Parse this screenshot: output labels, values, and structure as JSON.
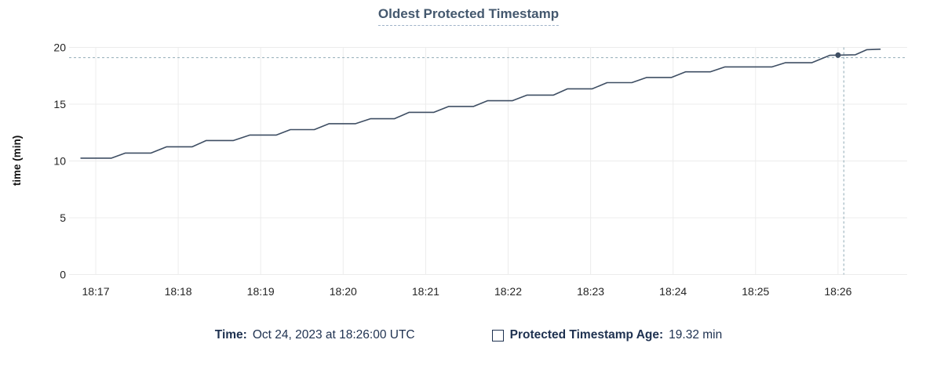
{
  "chart": {
    "tooltip": {
      "time_label": "Time:",
      "time_value": "Oct 24, 2023 at 18:26:00 UTC",
      "series_label": "Protected Timestamp Age:",
      "series_value": "19.32 min"
    }
  },
  "chart_data": {
    "type": "line",
    "title": "Oldest Protected Timestamp",
    "xlabel": "",
    "ylabel": "time (min)",
    "ylim": [
      0,
      20
    ],
    "yticks": [
      0,
      5,
      10,
      15,
      20
    ],
    "xtick_minutes_after_1800": [
      17,
      18,
      19,
      20,
      21,
      22,
      23,
      24,
      25,
      26
    ],
    "xtick_labels": [
      "18:17",
      "18:18",
      "18:19",
      "18:20",
      "18:21",
      "18:22",
      "18:23",
      "18:24",
      "18:25",
      "18:26"
    ],
    "grid": true,
    "legend_position": "bottom",
    "series": [
      {
        "name": "Protected Timestamp Age",
        "unit": "min",
        "points": [
          [
            16.82,
            10.25
          ],
          [
            17.19,
            10.25
          ],
          [
            17.36,
            10.7
          ],
          [
            17.67,
            10.7
          ],
          [
            17.86,
            11.25
          ],
          [
            18.17,
            11.25
          ],
          [
            18.34,
            11.8
          ],
          [
            18.67,
            11.8
          ],
          [
            18.87,
            12.28
          ],
          [
            19.19,
            12.28
          ],
          [
            19.36,
            12.76
          ],
          [
            19.65,
            12.76
          ],
          [
            19.83,
            13.28
          ],
          [
            20.15,
            13.28
          ],
          [
            20.33,
            13.72
          ],
          [
            20.62,
            13.72
          ],
          [
            20.8,
            14.28
          ],
          [
            21.1,
            14.28
          ],
          [
            21.28,
            14.8
          ],
          [
            21.58,
            14.8
          ],
          [
            21.75,
            15.3
          ],
          [
            22.05,
            15.3
          ],
          [
            22.23,
            15.8
          ],
          [
            22.55,
            15.8
          ],
          [
            22.72,
            16.35
          ],
          [
            23.02,
            16.35
          ],
          [
            23.2,
            16.9
          ],
          [
            23.5,
            16.9
          ],
          [
            23.68,
            17.35
          ],
          [
            23.98,
            17.35
          ],
          [
            24.15,
            17.85
          ],
          [
            24.45,
            17.85
          ],
          [
            24.63,
            18.28
          ],
          [
            25.2,
            18.28
          ],
          [
            25.36,
            18.65
          ],
          [
            25.68,
            18.65
          ],
          [
            25.9,
            19.3
          ],
          [
            26.0,
            19.32
          ],
          [
            26.21,
            19.35
          ],
          [
            26.35,
            19.8
          ],
          [
            26.51,
            19.84
          ]
        ]
      }
    ],
    "hover": {
      "point_t_minutes_after_1800": 26.0,
      "point_value_min": 19.32,
      "crosshair_t_minutes_after_1800": 26.07,
      "crosshair_value_min": 19.1
    }
  },
  "colors": {
    "line": "#3e4e63",
    "dot": "#3e4e63",
    "grid": "#ececec",
    "axis_text": "#242424",
    "axis_title_text": "#111111",
    "title_text": "#44586e",
    "title_underline": "#9fb3c8",
    "crosshair": "#9fb6c0",
    "legend_text": "#1e3150"
  }
}
